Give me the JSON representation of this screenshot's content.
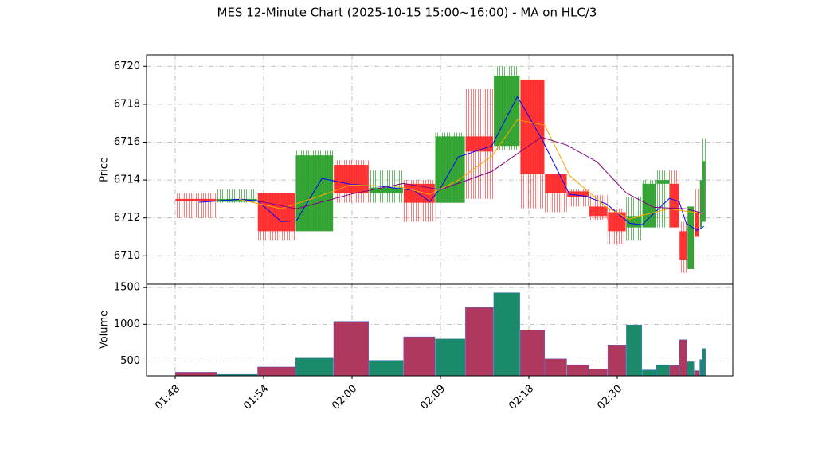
{
  "chart_data": [
    {
      "type": "candlestick",
      "title": "MES 12-Minute Chart (2025-10-15 15:00~16:00) - MA on HLC/3",
      "ylabel": "Price",
      "ylim": [
        6708.5,
        6720.6
      ],
      "yticks": [
        6710,
        6712,
        6714,
        6716,
        6718,
        6720
      ],
      "grid": true,
      "up_color": "#2ca02c",
      "down_color": "#ff2a2a",
      "x0": [
        0,
        4.7,
        9.3,
        13.6,
        17.9,
        21.9,
        25.8,
        29.4,
        32.8,
        36.0,
        39.0,
        41.8,
        44.3,
        46.8,
        48.9,
        51.0,
        52.8,
        54.4,
        55.9,
        57.0,
        57.9,
        58.7,
        59.3,
        59.6
      ],
      "x1": [
        4.7,
        9.3,
        13.6,
        17.9,
        21.9,
        25.8,
        29.4,
        32.8,
        36.0,
        39.0,
        41.8,
        44.3,
        46.8,
        48.9,
        51.0,
        52.8,
        54.4,
        55.9,
        57.0,
        57.9,
        58.7,
        59.3,
        59.6,
        60.0
      ],
      "open": [
        6713.0,
        6712.85,
        6713.3,
        6711.3,
        6714.8,
        6713.3,
        6713.8,
        6712.8,
        6716.3,
        6715.8,
        6719.3,
        6714.3,
        6713.4,
        6712.6,
        6712.3,
        6711.5,
        6711.5,
        6713.8,
        6713.8,
        6711.3,
        6709.3,
        6712.3,
        6711.5,
        6711.8
      ],
      "high": [
        6713.3,
        6713.5,
        6713.3,
        6715.55,
        6715.05,
        6714.5,
        6714.0,
        6716.5,
        6718.8,
        6720.0,
        6719.3,
        6714.3,
        6713.5,
        6713.2,
        6712.5,
        6713.1,
        6714.0,
        6714.5,
        6714.5,
        6711.8,
        6712.6,
        6713.5,
        6714.0,
        6716.2
      ],
      "low": [
        6712.0,
        6712.8,
        6710.8,
        6711.3,
        6712.8,
        6712.8,
        6711.8,
        6712.8,
        6713.0,
        6715.6,
        6712.5,
        6712.3,
        6712.6,
        6711.9,
        6710.6,
        6710.8,
        6711.5,
        6711.5,
        6711.5,
        6709.1,
        6709.3,
        6711.0,
        6711.5,
        6711.8
      ],
      "close": [
        6712.9,
        6713.0,
        6711.3,
        6715.3,
        6713.3,
        6713.6,
        6712.8,
        6716.3,
        6715.5,
        6719.5,
        6714.3,
        6713.3,
        6713.1,
        6712.1,
        6711.3,
        6712.1,
        6713.8,
        6714.0,
        6711.5,
        6709.8,
        6712.6,
        6711.0,
        6714.0,
        6715.0
      ],
      "lines": [
        {
          "color": "#0000ff",
          "x": [
            2.7,
            7.2,
            9.3,
            12.0,
            13.7,
            16.6,
            19.8,
            23.4,
            27.0,
            28.8,
            30.0,
            32.0,
            35.8,
            38.7,
            41.4,
            44.6,
            46.4,
            48.8,
            51.4,
            52.8,
            55.9,
            57.0,
            57.8,
            59.0,
            59.8
          ],
          "values": [
            6712.82,
            6712.98,
            6712.9,
            6711.81,
            6711.85,
            6714.08,
            6713.78,
            6713.66,
            6713.45,
            6712.86,
            6713.57,
            6715.21,
            6715.8,
            6718.4,
            6716.22,
            6713.24,
            6713.15,
            6712.73,
            6711.72,
            6711.64,
            6713.03,
            6712.86,
            6711.72,
            6711.34,
            6711.55
          ]
        },
        {
          "color": "#ffa500",
          "x": [
            7.2,
            12.0,
            16.6,
            19.8,
            25.2,
            28.8,
            32.0,
            35.8,
            38.7,
            41.8,
            44.6,
            48.8,
            51.4,
            52.8,
            55.9,
            57.8,
            59.8
          ],
          "values": [
            6712.98,
            6712.48,
            6713.19,
            6713.74,
            6713.66,
            6713.24,
            6713.99,
            6715.25,
            6717.18,
            6716.89,
            6714.24,
            6712.56,
            6711.93,
            6712.14,
            6712.48,
            6712.35,
            6712.23
          ]
        },
        {
          "color": "#800080",
          "x": [
            9.3,
            13.7,
            19.8,
            25.8,
            30.0,
            35.8,
            41.4,
            44.3,
            47.7,
            51.0,
            54.1,
            57.8,
            59.8
          ],
          "values": [
            6712.9,
            6712.48,
            6713.24,
            6713.82,
            6713.49,
            6714.45,
            6716.26,
            6715.84,
            6714.96,
            6713.32,
            6712.56,
            6712.48,
            6712.23
          ]
        }
      ]
    },
    {
      "type": "volume",
      "ylabel": "Volume",
      "ylim": [
        300,
        1545
      ],
      "yticks": [
        500,
        1000,
        1500
      ],
      "grid": true,
      "up_color": "#1a8a6a",
      "down_color": "#b0385e",
      "values": [
        350,
        320,
        420,
        540,
        1040,
        510,
        830,
        800,
        1230,
        1430,
        920,
        530,
        450,
        390,
        720,
        990,
        380,
        450,
        440,
        790,
        490,
        370,
        520,
        670
      ],
      "xlim": [
        -3.24,
        63.06
      ],
      "xticks": [
        {
          "value": 0,
          "label": "01:48"
        },
        {
          "value": 10,
          "label": "01:54"
        },
        {
          "value": 20,
          "label": "02:00"
        },
        {
          "value": 30,
          "label": "02:09"
        },
        {
          "value": 40,
          "label": "02:18"
        },
        {
          "value": 50,
          "label": "02:30"
        }
      ]
    }
  ]
}
